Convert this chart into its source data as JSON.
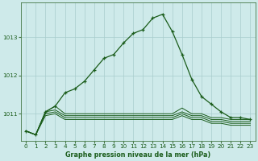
{
  "title": "Graphe pression niveau de la mer (hPa)",
  "background_color": "#ceeaea",
  "grid_color": "#a8cccc",
  "line_color": "#1a5c1a",
  "xlim": [
    -0.5,
    23.5
  ],
  "ylim": [
    1010.3,
    1013.9
  ],
  "yticks": [
    1011,
    1012,
    1013
  ],
  "xticks": [
    0,
    1,
    2,
    3,
    4,
    5,
    6,
    7,
    8,
    9,
    10,
    11,
    12,
    13,
    14,
    15,
    16,
    17,
    18,
    19,
    20,
    21,
    22,
    23
  ],
  "main_series": {
    "x": [
      0,
      1,
      2,
      3,
      4,
      5,
      6,
      7,
      8,
      9,
      10,
      11,
      12,
      13,
      14,
      15,
      16,
      17,
      18,
      19,
      20,
      21,
      22,
      23
    ],
    "y": [
      1010.55,
      1010.45,
      1011.05,
      1011.2,
      1011.55,
      1011.65,
      1011.85,
      1012.15,
      1012.45,
      1012.55,
      1012.85,
      1013.1,
      1013.2,
      1013.5,
      1013.6,
      1013.15,
      1012.55,
      1011.9,
      1011.45,
      1011.25,
      1011.05,
      1010.9,
      1010.9,
      1010.85
    ]
  },
  "flat_series": [
    {
      "x": [
        0,
        1,
        2,
        3,
        4,
        5,
        6,
        7,
        8,
        9,
        10,
        11,
        12,
        13,
        14,
        15,
        16,
        17,
        18,
        19,
        20,
        21,
        22,
        23
      ],
      "y": [
        1010.55,
        1010.45,
        1011.05,
        1011.2,
        1011.0,
        1011.0,
        1011.0,
        1011.0,
        1011.0,
        1011.0,
        1011.0,
        1011.0,
        1011.0,
        1011.0,
        1011.0,
        1011.0,
        1011.15,
        1011.0,
        1011.0,
        1010.9,
        1010.9,
        1010.85,
        1010.85,
        1010.85
      ]
    },
    {
      "x": [
        0,
        1,
        2,
        3,
        4,
        5,
        6,
        7,
        8,
        9,
        10,
        11,
        12,
        13,
        14,
        15,
        16,
        17,
        18,
        19,
        20,
        21,
        22,
        23
      ],
      "y": [
        1010.55,
        1010.45,
        1011.05,
        1011.1,
        1010.95,
        1010.95,
        1010.95,
        1010.95,
        1010.95,
        1010.95,
        1010.95,
        1010.95,
        1010.95,
        1010.95,
        1010.95,
        1010.95,
        1011.05,
        1010.95,
        1010.95,
        1010.85,
        1010.85,
        1010.8,
        1010.8,
        1010.8
      ]
    },
    {
      "x": [
        0,
        1,
        2,
        3,
        4,
        5,
        6,
        7,
        8,
        9,
        10,
        11,
        12,
        13,
        14,
        15,
        16,
        17,
        18,
        19,
        20,
        21,
        22,
        23
      ],
      "y": [
        1010.55,
        1010.45,
        1011.0,
        1011.05,
        1010.9,
        1010.9,
        1010.9,
        1010.9,
        1010.9,
        1010.9,
        1010.9,
        1010.9,
        1010.9,
        1010.9,
        1010.9,
        1010.9,
        1011.0,
        1010.9,
        1010.9,
        1010.8,
        1010.8,
        1010.75,
        1010.75,
        1010.75
      ]
    },
    {
      "x": [
        0,
        1,
        2,
        3,
        4,
        5,
        6,
        7,
        8,
        9,
        10,
        11,
        12,
        13,
        14,
        15,
        16,
        17,
        18,
        19,
        20,
        21,
        22,
        23
      ],
      "y": [
        1010.55,
        1010.45,
        1010.95,
        1011.0,
        1010.85,
        1010.85,
        1010.85,
        1010.85,
        1010.85,
        1010.85,
        1010.85,
        1010.85,
        1010.85,
        1010.85,
        1010.85,
        1010.85,
        1010.95,
        1010.85,
        1010.85,
        1010.75,
        1010.75,
        1010.7,
        1010.7,
        1010.7
      ]
    }
  ]
}
